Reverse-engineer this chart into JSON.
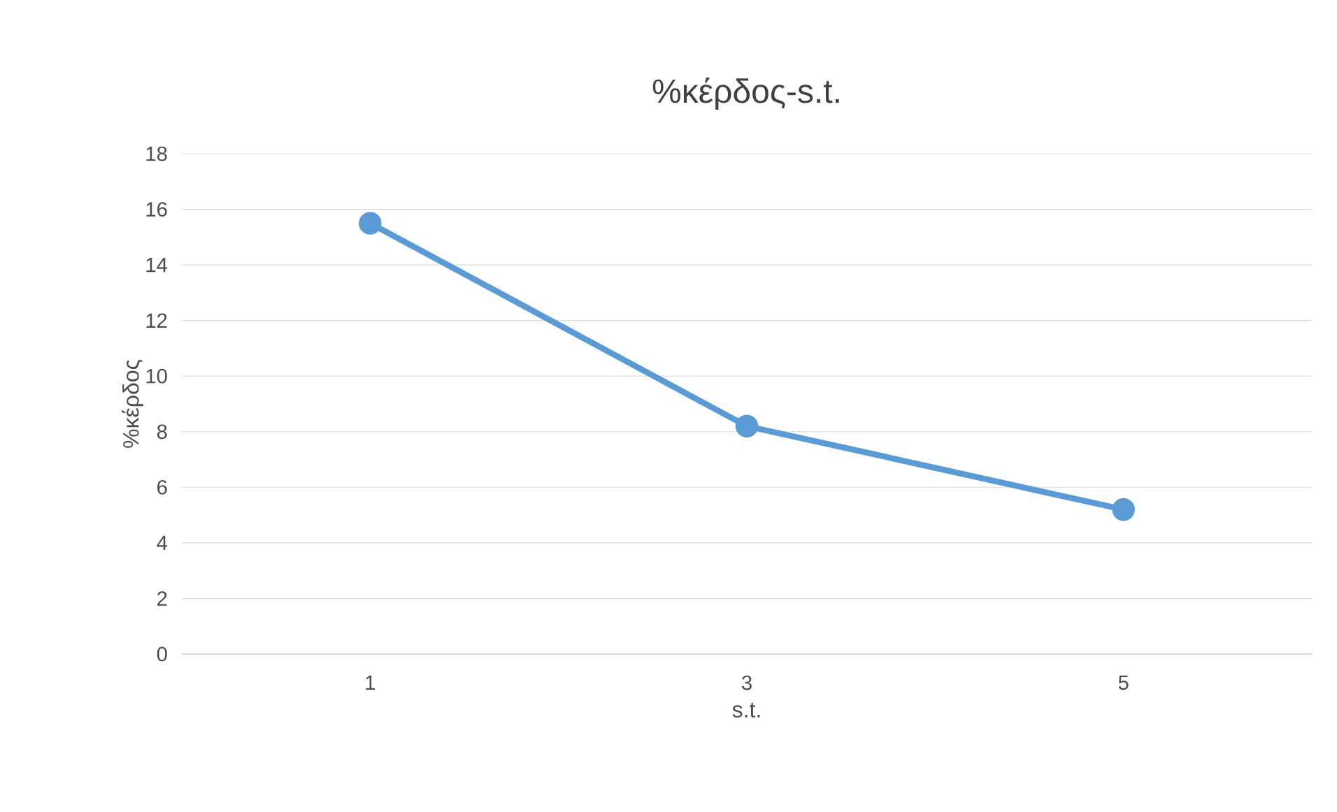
{
  "chart_data": {
    "type": "line",
    "title": "%κέρδος-s.t.",
    "xlabel": "s.t.",
    "ylabel": "%κέρδος",
    "categories": [
      "1",
      "3",
      "5"
    ],
    "series": [
      {
        "color": "#5b9bd5",
        "values": [
          15.5,
          8.2,
          5.2
        ]
      }
    ],
    "ylim": [
      0,
      18
    ],
    "yticks": [
      0,
      2,
      4,
      6,
      8,
      10,
      12,
      14,
      16,
      18
    ],
    "grid": "y",
    "marker": "circle",
    "line_style": "solid"
  }
}
